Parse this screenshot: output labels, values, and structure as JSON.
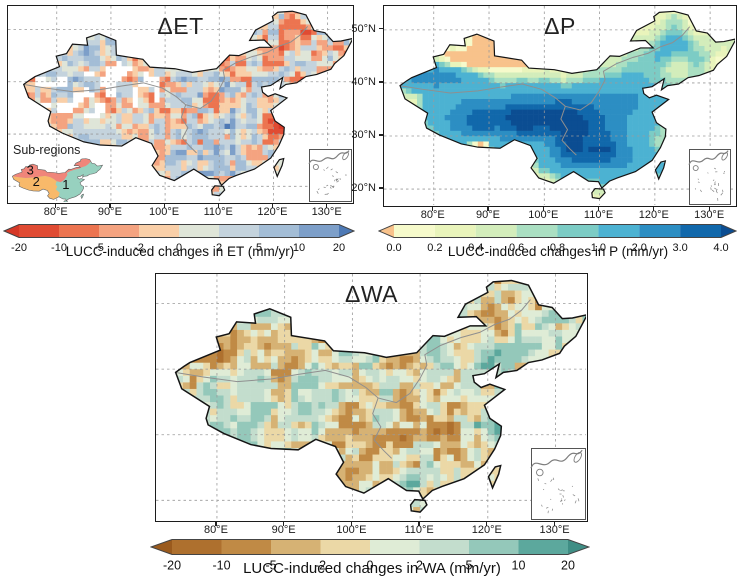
{
  "panels": [
    {
      "id": "ET",
      "title": "ΔET",
      "caption": "LUCC-induced changes in ET (mm/yr)",
      "lon_ticks": [
        "80°E",
        "90°E",
        "100°E",
        "110°E",
        "120°E",
        "130°E"
      ],
      "colorbar": {
        "tick_labels": [
          "-20",
          "-10",
          "-5",
          "-2",
          "0",
          "2",
          "5",
          "10",
          "20"
        ],
        "segment_colors": [
          "#e04b33",
          "#ec7450",
          "#f4a380",
          "#f9cfa8",
          "#dfe5d8",
          "#c4d3dd",
          "#a3bdd6",
          "#7d9fc9"
        ],
        "arrow_left_color": "#d63827",
        "arrow_right_color": "#4d79b5"
      }
    },
    {
      "id": "P",
      "title": "ΔP",
      "caption": "LUCC-induced changes in P (mm/yr)",
      "lon_ticks": [
        "80°E",
        "90°E",
        "100°E",
        "110°E",
        "120°E",
        "130°E"
      ],
      "lat_ticks": [
        "50°N",
        "40°N",
        "30°N",
        "20°N"
      ],
      "colorbar": {
        "tick_labels": [
          "0.0",
          "0.2",
          "0.4",
          "0.6",
          "0.8",
          "1.0",
          "2.0",
          "3.0",
          "4.0"
        ],
        "segment_colors": [
          "#f6facb",
          "#e9f4bb",
          "#d3edbb",
          "#aadfc2",
          "#7cccc5",
          "#4cb2d2",
          "#2c8ec3",
          "#1168ab"
        ],
        "arrow_left_color": "#f8c28b",
        "arrow_right_color": "#0b4d92"
      }
    },
    {
      "id": "WA",
      "title": "ΔWA",
      "caption": "LUCC-induced changes in WA (mm/yr)",
      "lon_ticks": [
        "80°E",
        "90°E",
        "100°E",
        "110°E",
        "120°E",
        "130°E"
      ],
      "colorbar": {
        "tick_labels": [
          "-20",
          "-10",
          "-5",
          "-2",
          "0",
          "2",
          "5",
          "10",
          "20"
        ],
        "segment_colors": [
          "#ae702e",
          "#c08a45",
          "#d6b274",
          "#ebd8a6",
          "#dfecd6",
          "#c3ddcd",
          "#94c8ba",
          "#5ca89d"
        ],
        "arrow_left_color": "#9a5a1d",
        "arrow_right_color": "#3f8e85"
      }
    }
  ],
  "subregions": {
    "label": "Sub-regions",
    "regions": [
      {
        "number": "1",
        "color": "#97d1bf"
      },
      {
        "number": "2",
        "color": "#f8b96a"
      },
      {
        "number": "3",
        "color": "#f0857a"
      }
    ]
  }
}
